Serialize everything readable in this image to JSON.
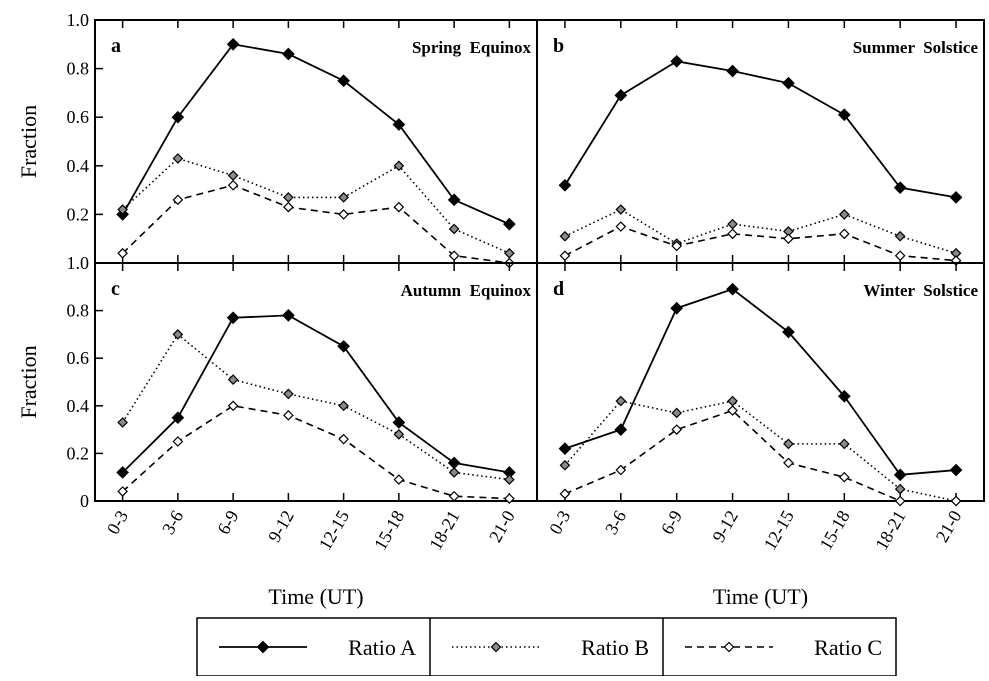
{
  "chart_data": [
    {
      "type": "line",
      "panel": "a",
      "title": "Spring Equinox",
      "xlabel": "",
      "ylabel": "Fraction",
      "categories": [
        "0-3",
        "3-6",
        "6-9",
        "9-12",
        "12-15",
        "15-18",
        "18-21",
        "21-0"
      ],
      "ylim": [
        0,
        1.0
      ],
      "yticks": [
        "0.2",
        "0.4",
        "0.6",
        "0.8",
        "1.0"
      ],
      "series": [
        {
          "name": "Ratio A",
          "values": [
            0.2,
            0.6,
            0.9,
            0.86,
            0.75,
            0.57,
            0.26,
            0.16
          ]
        },
        {
          "name": "Ratio B",
          "values": [
            0.22,
            0.43,
            0.36,
            0.27,
            0.27,
            0.4,
            0.14,
            0.04
          ]
        },
        {
          "name": "Ratio C",
          "values": [
            0.04,
            0.26,
            0.32,
            0.23,
            0.2,
            0.23,
            0.03,
            0.0
          ]
        }
      ]
    },
    {
      "type": "line",
      "panel": "b",
      "title": "Summer Solstice",
      "xlabel": "",
      "ylabel": "",
      "categories": [
        "0-3",
        "3-6",
        "6-9",
        "9-12",
        "12-15",
        "15-18",
        "18-21",
        "21-0"
      ],
      "ylim": [
        0,
        1.0
      ],
      "series": [
        {
          "name": "Ratio A",
          "values": [
            0.32,
            0.69,
            0.83,
            0.79,
            0.74,
            0.61,
            0.31,
            0.27
          ]
        },
        {
          "name": "Ratio B",
          "values": [
            0.11,
            0.22,
            0.08,
            0.16,
            0.13,
            0.2,
            0.11,
            0.04
          ]
        },
        {
          "name": "Ratio C",
          "values": [
            0.03,
            0.15,
            0.07,
            0.12,
            0.1,
            0.12,
            0.03,
            0.01
          ]
        }
      ]
    },
    {
      "type": "line",
      "panel": "c",
      "title": "Autumn Equinox",
      "xlabel": "Time (UT)",
      "ylabel": "Fraction",
      "categories": [
        "0-3",
        "3-6",
        "6-9",
        "9-12",
        "12-15",
        "15-18",
        "18-21",
        "21-0"
      ],
      "ylim": [
        0,
        1.0
      ],
      "yticks": [
        "0",
        "0.2",
        "0.4",
        "0.6",
        "0.8",
        "1.0"
      ],
      "series": [
        {
          "name": "Ratio A",
          "values": [
            0.12,
            0.35,
            0.77,
            0.78,
            0.65,
            0.33,
            0.16,
            0.12
          ]
        },
        {
          "name": "Ratio B",
          "values": [
            0.33,
            0.7,
            0.51,
            0.45,
            0.4,
            0.28,
            0.12,
            0.09
          ]
        },
        {
          "name": "Ratio C",
          "values": [
            0.04,
            0.25,
            0.4,
            0.36,
            0.26,
            0.09,
            0.02,
            0.01
          ]
        }
      ]
    },
    {
      "type": "line",
      "panel": "d",
      "title": "Winter Solstice",
      "xlabel": "Time (UT)",
      "ylabel": "",
      "categories": [
        "0-3",
        "3-6",
        "6-9",
        "9-12",
        "12-15",
        "15-18",
        "18-21",
        "21-0"
      ],
      "ylim": [
        0,
        1.0
      ],
      "series": [
        {
          "name": "Ratio A",
          "values": [
            0.22,
            0.3,
            0.81,
            0.89,
            0.71,
            0.44,
            0.11,
            0.13
          ]
        },
        {
          "name": "Ratio B",
          "values": [
            0.15,
            0.42,
            0.37,
            0.42,
            0.24,
            0.24,
            0.05,
            0.0
          ]
        },
        {
          "name": "Ratio C",
          "values": [
            0.03,
            0.13,
            0.3,
            0.38,
            0.16,
            0.1,
            0.0,
            0.0
          ]
        }
      ]
    }
  ],
  "legend": {
    "placement": "bottom",
    "items": [
      {
        "label": "Ratio A",
        "line": "solid",
        "marker": "filled-diamond",
        "color": "#000000"
      },
      {
        "label": "Ratio B",
        "line": "dotted",
        "marker": "gray-diamond",
        "color": "#888888"
      },
      {
        "label": "Ratio C",
        "line": "dashed",
        "marker": "open-diamond",
        "color": "#ffffff"
      }
    ]
  }
}
